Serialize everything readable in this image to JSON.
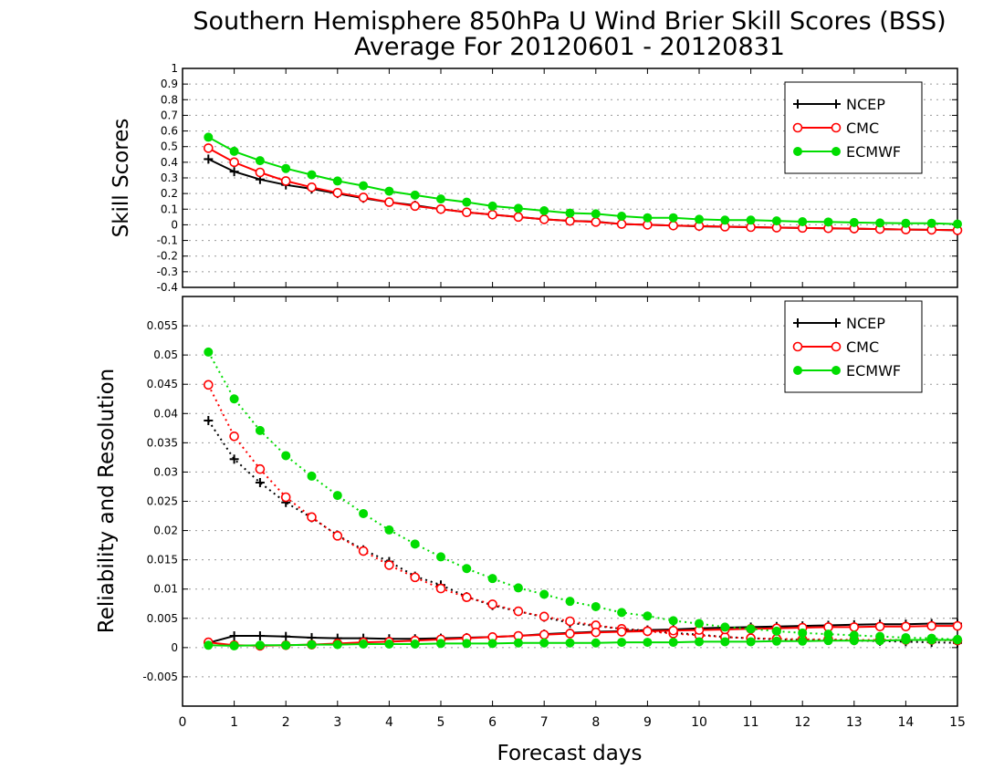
{
  "title_line1": "Southern Hemisphere 850hPa U Wind Brier Skill Scores (BSS)",
  "title_line2": "Average For 20120601 - 20120831",
  "xlabel": "Forecast days",
  "colors": {
    "NCEP": "#000000",
    "CMC": "#ff0000",
    "ECMWF": "#00dd00"
  },
  "chart_data": [
    {
      "type": "line",
      "ylabel": "Skill Scores",
      "xlim": [
        0,
        15
      ],
      "ylim": [
        -0.4,
        1
      ],
      "yticks": [
        1,
        0.9,
        0.8,
        0.7,
        0.6,
        0.5,
        0.4,
        0.3,
        0.2,
        0.1,
        0,
        -0.1,
        -0.2,
        -0.3,
        -0.4
      ],
      "xticks": [
        0,
        1,
        2,
        3,
        4,
        5,
        6,
        7,
        8,
        9,
        10,
        11,
        12,
        13,
        14,
        15
      ],
      "grid": true,
      "legend_position": "top-right",
      "x": [
        0.5,
        1,
        1.5,
        2,
        2.5,
        3,
        3.5,
        4,
        4.5,
        5,
        5.5,
        6,
        6.5,
        7,
        7.5,
        8,
        8.5,
        9,
        9.5,
        10,
        10.5,
        11,
        11.5,
        12,
        12.5,
        13,
        13.5,
        14,
        14.5,
        15
      ],
      "series": [
        {
          "name": "NCEP",
          "marker": "plus",
          "style": "solid",
          "values": [
            0.42,
            0.34,
            0.29,
            0.255,
            0.23,
            0.2,
            0.17,
            0.145,
            0.125,
            0.1,
            0.08,
            0.065,
            0.05,
            0.035,
            0.025,
            0.02,
            0.005,
            0.0,
            -0.005,
            -0.01,
            -0.012,
            -0.015,
            -0.018,
            -0.02,
            -0.022,
            -0.025,
            -0.027,
            -0.03,
            -0.032,
            -0.035
          ]
        },
        {
          "name": "CMC",
          "marker": "open-circle",
          "style": "solid",
          "values": [
            0.49,
            0.4,
            0.335,
            0.28,
            0.24,
            0.205,
            0.175,
            0.145,
            0.12,
            0.1,
            0.08,
            0.065,
            0.05,
            0.035,
            0.025,
            0.018,
            0.005,
            0.0,
            -0.005,
            -0.008,
            -0.012,
            -0.015,
            -0.018,
            -0.02,
            -0.022,
            -0.024,
            -0.027,
            -0.03,
            -0.032,
            -0.035
          ]
        },
        {
          "name": "ECMWF",
          "marker": "filled-circle",
          "style": "solid",
          "values": [
            0.56,
            0.47,
            0.41,
            0.36,
            0.32,
            0.28,
            0.25,
            0.215,
            0.19,
            0.165,
            0.145,
            0.12,
            0.105,
            0.09,
            0.075,
            0.07,
            0.055,
            0.045,
            0.045,
            0.035,
            0.03,
            0.03,
            0.025,
            0.02,
            0.018,
            0.015,
            0.012,
            0.01,
            0.01,
            0.005
          ]
        }
      ]
    },
    {
      "type": "line",
      "ylabel": "Reliability and Resolution",
      "xlim": [
        0,
        15
      ],
      "ylim": [
        -0.01,
        0.06
      ],
      "yticks": [
        0.055,
        0.05,
        0.045,
        0.04,
        0.035,
        0.03,
        0.025,
        0.02,
        0.015,
        0.01,
        0.005,
        0,
        -0.005
      ],
      "xticks": [
        0,
        1,
        2,
        3,
        4,
        5,
        6,
        7,
        8,
        9,
        10,
        11,
        12,
        13,
        14,
        15
      ],
      "grid": true,
      "legend_position": "top-right",
      "x": [
        0.5,
        1,
        1.5,
        2,
        2.5,
        3,
        3.5,
        4,
        4.5,
        5,
        5.5,
        6,
        6.5,
        7,
        7.5,
        8,
        8.5,
        9,
        9.5,
        10,
        10.5,
        11,
        11.5,
        12,
        12.5,
        13,
        13.5,
        14,
        14.5,
        15
      ],
      "series": [
        {
          "name": "NCEP",
          "metric": "resolution",
          "marker": "plus",
          "style": "dotted",
          "values": [
            0.0388,
            0.0322,
            0.0282,
            0.0248,
            0.0222,
            0.0192,
            0.0167,
            0.0147,
            0.0122,
            0.0107,
            0.0087,
            0.0072,
            0.0062,
            0.0052,
            0.0042,
            0.0037,
            0.0032,
            0.0029,
            0.0025,
            0.0022,
            0.0018,
            0.0016,
            0.0014,
            0.0013,
            0.0013,
            0.0012,
            0.0011,
            0.001,
            0.0009,
            0.0008
          ]
        },
        {
          "name": "NCEP",
          "metric": "reliability",
          "marker": "plus",
          "style": "solid",
          "values": [
            0.0008,
            0.002,
            0.002,
            0.0019,
            0.0017,
            0.0016,
            0.0016,
            0.0015,
            0.0015,
            0.0016,
            0.0017,
            0.0018,
            0.002,
            0.0023,
            0.0025,
            0.0027,
            0.0028,
            0.003,
            0.0031,
            0.0033,
            0.0034,
            0.0035,
            0.0036,
            0.0037,
            0.0038,
            0.0039,
            0.004,
            0.004,
            0.0041,
            0.0041
          ]
        },
        {
          "name": "CMC",
          "metric": "resolution",
          "marker": "open-circle",
          "style": "dotted",
          "values": [
            0.0449,
            0.0361,
            0.0305,
            0.0257,
            0.0223,
            0.0191,
            0.0165,
            0.0141,
            0.012,
            0.0101,
            0.0086,
            0.0074,
            0.0062,
            0.0053,
            0.0045,
            0.0038,
            0.0032,
            0.0028,
            0.0024,
            0.0021,
            0.0018,
            0.0016,
            0.0015,
            0.0014,
            0.0014,
            0.0013,
            0.0013,
            0.0013,
            0.0013,
            0.0012
          ]
        },
        {
          "name": "CMC",
          "metric": "reliability",
          "marker": "open-circle",
          "style": "solid",
          "values": [
            0.0009,
            0.0004,
            0.0003,
            0.0004,
            0.0005,
            0.0007,
            0.0009,
            0.001,
            0.0012,
            0.0014,
            0.0016,
            0.0018,
            0.002,
            0.0022,
            0.0024,
            0.0026,
            0.0027,
            0.0028,
            0.0029,
            0.003,
            0.0031,
            0.0032,
            0.0033,
            0.0034,
            0.0035,
            0.0035,
            0.0036,
            0.0036,
            0.0037,
            0.0037
          ]
        },
        {
          "name": "ECMWF",
          "metric": "resolution",
          "marker": "filled-circle",
          "style": "dotted",
          "values": [
            0.0505,
            0.0425,
            0.0371,
            0.0328,
            0.0293,
            0.026,
            0.0229,
            0.0201,
            0.0177,
            0.0155,
            0.0135,
            0.0118,
            0.0102,
            0.0091,
            0.0079,
            0.007,
            0.006,
            0.0054,
            0.0046,
            0.0041,
            0.0035,
            0.0032,
            0.0028,
            0.0025,
            0.0023,
            0.0021,
            0.0019,
            0.0017,
            0.0016,
            0.0014
          ]
        },
        {
          "name": "ECMWF",
          "metric": "reliability",
          "marker": "filled-circle",
          "style": "solid",
          "values": [
            0.0004,
            0.0003,
            0.0004,
            0.0004,
            0.0005,
            0.0005,
            0.0006,
            0.0006,
            0.0006,
            0.0007,
            0.0007,
            0.0007,
            0.0008,
            0.0008,
            0.0008,
            0.0008,
            0.0009,
            0.0009,
            0.0009,
            0.001,
            0.001,
            0.001,
            0.0011,
            0.0011,
            0.0012,
            0.0012,
            0.0012,
            0.0013,
            0.0013,
            0.0013
          ]
        }
      ]
    }
  ]
}
